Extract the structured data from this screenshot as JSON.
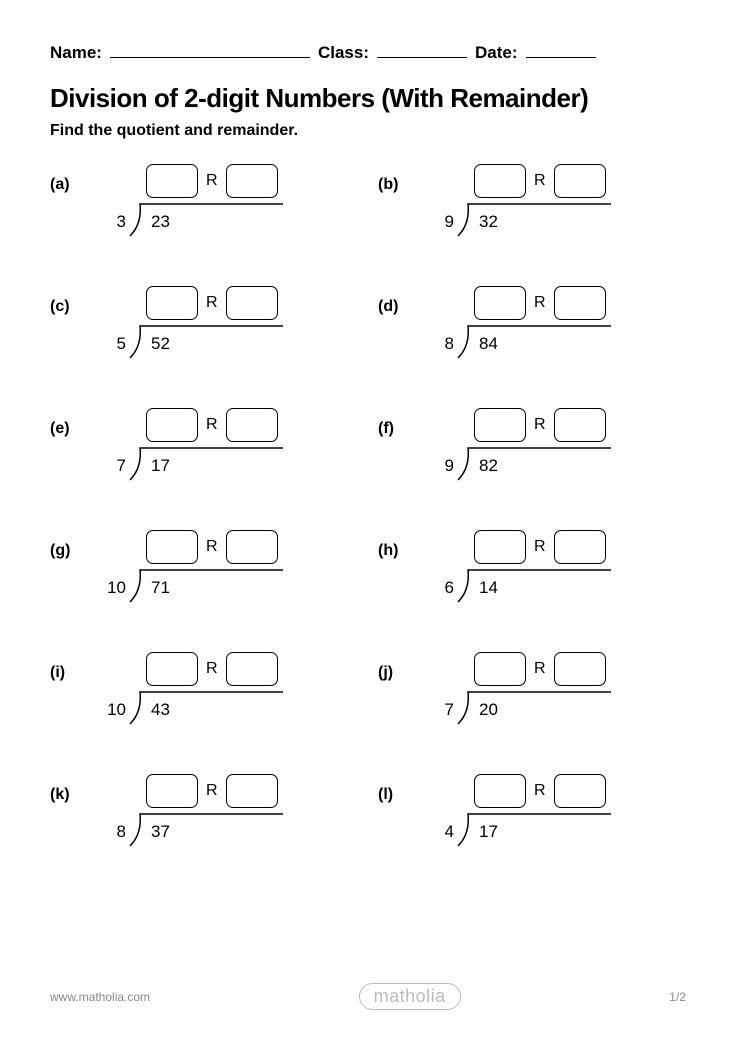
{
  "header": {
    "name_label": "Name:",
    "class_label": "Class:",
    "date_label": "Date:"
  },
  "title": "Division of 2-digit Numbers (With Remainder)",
  "subtitle": "Find the quotient and remainder.",
  "remainder_letter": "R",
  "problems": [
    {
      "label": "(a)",
      "divisor": "3",
      "dividend": "23"
    },
    {
      "label": "(b)",
      "divisor": "9",
      "dividend": "32"
    },
    {
      "label": "(c)",
      "divisor": "5",
      "dividend": "52"
    },
    {
      "label": "(d)",
      "divisor": "8",
      "dividend": "84"
    },
    {
      "label": "(e)",
      "divisor": "7",
      "dividend": "17"
    },
    {
      "label": "(f)",
      "divisor": "9",
      "dividend": "82"
    },
    {
      "label": "(g)",
      "divisor": "10",
      "dividend": "71"
    },
    {
      "label": "(h)",
      "divisor": "6",
      "dividend": "14"
    },
    {
      "label": "(i)",
      "divisor": "10",
      "dividend": "43"
    },
    {
      "label": "(j)",
      "divisor": "7",
      "dividend": "20"
    },
    {
      "label": "(k)",
      "divisor": "8",
      "dividend": "37"
    },
    {
      "label": "(l)",
      "divisor": "4",
      "dividend": "17"
    }
  ],
  "footer": {
    "website": "www.matholia.com",
    "logo_text": "matholia",
    "page": "1/2"
  },
  "style": {
    "box_border_color": "#000000",
    "box_border_radius": 7,
    "line_color": "#000000",
    "text_color": "#000000",
    "footer_color": "#888888",
    "logo_color": "#bbbbbb",
    "background": "#ffffff",
    "title_fontsize": 26,
    "subtitle_fontsize": 16,
    "label_fontsize": 16,
    "number_fontsize": 17
  }
}
